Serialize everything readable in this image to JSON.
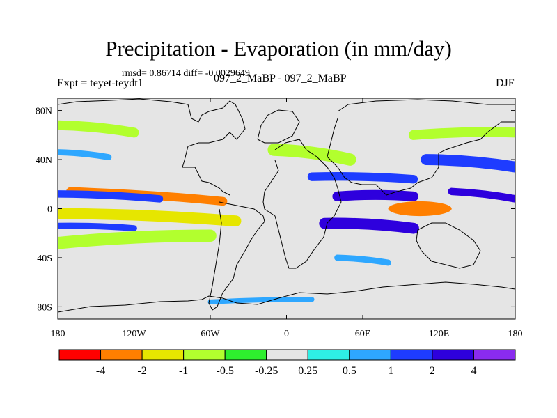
{
  "header": {
    "title": "Precipitation - Evaporation (in mm/day)",
    "stats": "rmsd= 0.86714 diff= -0.0029649",
    "expt": "Expt = teyet-teydt1",
    "subtitle": "097_2_MaBP - 097_2_MaBP",
    "season": "DJF"
  },
  "chart_data": {
    "type": "heatmap",
    "title": "Precipitation - Evaporation (in mm/day)",
    "variable": "Precipitation minus Evaporation difference",
    "units": "mm/day",
    "projection": "cylindrical equidistant",
    "x": {
      "range": [
        -180,
        180
      ],
      "ticks": [
        -180,
        -120,
        -60,
        0,
        60,
        120,
        180
      ],
      "tick_labels": [
        "180",
        "120W",
        "60W",
        "0",
        "60E",
        "120E",
        "180"
      ]
    },
    "y": {
      "range": [
        -90,
        90
      ],
      "ticks": [
        80,
        40,
        0,
        -40,
        -80
      ],
      "tick_labels": [
        "80N",
        "40N",
        "0",
        "40S",
        "80S"
      ]
    },
    "colorbar": {
      "levels": [
        -4,
        -2,
        -1,
        -0.5,
        -0.25,
        0.25,
        0.5,
        1,
        2,
        4
      ],
      "level_labels": [
        "-4",
        "-2",
        "-1",
        "-0.5",
        "-0.25",
        "0.25",
        "0.5",
        "1",
        "2",
        "4"
      ],
      "colors": [
        "#ff0000",
        "#ff7f00",
        "#e6e600",
        "#b2ff2e",
        "#2eef2e",
        "#e5e5e5",
        "#2eefe5",
        "#2ea7ff",
        "#1e3cff",
        "#2e00dd",
        "#8a2bef"
      ]
    },
    "features": [
      {
        "value": -3.2,
        "lon": [
          -170,
          -50
        ],
        "lat": [
          14,
          6
        ],
        "class": "ribbon",
        "thickness": 7
      },
      {
        "value": 1.5,
        "lon": [
          -180,
          -100
        ],
        "lat": [
          12,
          8
        ],
        "class": "ribbon",
        "thickness": 6
      },
      {
        "value": -1.5,
        "lon": [
          -180,
          -40
        ],
        "lat": [
          -4,
          -10
        ],
        "class": "ribbon",
        "thickness": 9
      },
      {
        "value": 1.2,
        "lon": [
          -180,
          -120
        ],
        "lat": [
          -14,
          -16
        ],
        "class": "ribbon",
        "thickness": 5
      },
      {
        "value": -0.6,
        "lon": [
          -180,
          -60
        ],
        "lat": [
          -28,
          -22
        ],
        "class": "ribbon",
        "thickness": 10
      },
      {
        "value": 0.8,
        "lon": [
          -180,
          -140
        ],
        "lat": [
          46,
          42
        ],
        "class": "ribbon",
        "thickness": 5
      },
      {
        "value": -0.8,
        "lon": [
          -180,
          -120
        ],
        "lat": [
          68,
          62
        ],
        "class": "ribbon",
        "thickness": 8
      },
      {
        "value": -3.6,
        "lon": [
          80,
          130
        ],
        "lat": [
          0,
          0
        ],
        "class": "blob",
        "rx": 25,
        "ry": 6
      },
      {
        "value": 2.5,
        "lon": [
          30,
          100
        ],
        "lat": [
          -12,
          -16
        ],
        "class": "ribbon",
        "thickness": 9
      },
      {
        "value": 2.8,
        "lon": [
          40,
          100
        ],
        "lat": [
          10,
          10
        ],
        "class": "ribbon",
        "thickness": 8
      },
      {
        "value": 1.2,
        "lon": [
          20,
          100
        ],
        "lat": [
          26,
          24
        ],
        "class": "ribbon",
        "thickness": 7
      },
      {
        "value": 2.2,
        "lon": [
          130,
          180
        ],
        "lat": [
          14,
          8
        ],
        "class": "ribbon",
        "thickness": 6
      },
      {
        "value": 1.8,
        "lon": [
          110,
          180
        ],
        "lat": [
          40,
          34
        ],
        "class": "ribbon",
        "thickness": 9
      },
      {
        "value": -0.7,
        "lon": [
          -10,
          50
        ],
        "lat": [
          48,
          40
        ],
        "class": "ribbon",
        "thickness": 10
      },
      {
        "value": 0.7,
        "lon": [
          40,
          80
        ],
        "lat": [
          -40,
          -44
        ],
        "class": "ribbon",
        "thickness": 5
      },
      {
        "value": -0.7,
        "lon": [
          100,
          180
        ],
        "lat": [
          60,
          62
        ],
        "class": "ribbon",
        "thickness": 8
      },
      {
        "value": 0.7,
        "lon": [
          -60,
          20
        ],
        "lat": [
          -76,
          -74
        ],
        "class": "ribbon",
        "thickness": 4
      }
    ]
  }
}
